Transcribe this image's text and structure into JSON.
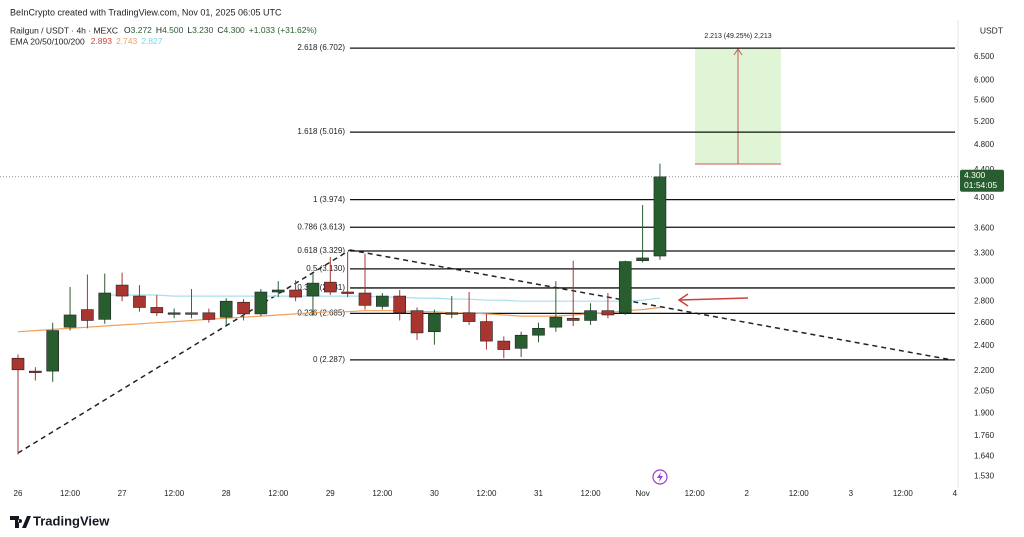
{
  "attribution": "BeInCrypto created with TradingView.com, Nov 01, 2025 06:05 UTC",
  "branding": "TradingView",
  "header": {
    "symbol": "Railgun / USDT · 4h · MEXC",
    "ohlc_labels": [
      "O",
      "H",
      "L",
      "C"
    ],
    "ohlc_values": [
      "3.272",
      "4.500",
      "3.230",
      "4.300"
    ],
    "change": "+1.033 (+31.62%)",
    "ema_label": "EMA 20/50/100/200",
    "ema_values": [
      "2.893",
      "2.743",
      "2.827"
    ],
    "ema_colors": [
      "#d0453f",
      "#f2a05a",
      "#7fd3e6"
    ]
  },
  "chart_data": {
    "type": "candlestick",
    "log": true,
    "currency": "USDT",
    "categories": [
      "26",
      null,
      null,
      "12:00",
      null,
      null,
      "27",
      null,
      null,
      "12:00",
      null,
      null,
      "28",
      null,
      null,
      "12:00",
      null,
      null,
      "29",
      null,
      null,
      "12:00",
      null,
      null,
      "30",
      null,
      null,
      "12:00",
      null,
      null,
      "31",
      null,
      null,
      "12:00",
      null,
      null,
      "Nov",
      null,
      null,
      "12:00",
      null,
      null,
      "2",
      null,
      null,
      "12:00",
      null,
      null,
      "3",
      null,
      null,
      "12:00",
      null,
      null,
      "4"
    ],
    "open": [
      2.3,
      2.2,
      2.2,
      2.56,
      2.72,
      2.63,
      2.96,
      2.85,
      2.74,
      2.68,
      2.69,
      2.69,
      2.65,
      2.79,
      2.68,
      2.89,
      2.91,
      2.85,
      2.99,
      2.89,
      2.88,
      2.75,
      2.85,
      2.71,
      2.52,
      2.68,
      2.69,
      2.61,
      2.44,
      2.38,
      2.49,
      2.56,
      2.64,
      2.62,
      2.71,
      2.69,
      3.22,
      3.272,
      null,
      null,
      null,
      null,
      null,
      null,
      null,
      null,
      null,
      null,
      null,
      null,
      null,
      null,
      null,
      null,
      null
    ],
    "high": [
      2.33,
      2.23,
      2.6,
      2.94,
      3.07,
      3.08,
      3.09,
      2.96,
      2.86,
      2.73,
      2.92,
      2.73,
      2.83,
      2.82,
      2.92,
      3.0,
      3.01,
      3.08,
      3.26,
      3.32,
      3.3,
      2.88,
      2.91,
      2.74,
      2.72,
      2.85,
      2.89,
      2.68,
      2.48,
      2.52,
      2.6,
      3.0,
      3.22,
      2.78,
      2.88,
      3.22,
      3.9,
      4.5,
      null,
      null,
      null,
      null,
      null,
      null,
      null,
      null,
      null,
      null,
      null,
      null,
      null,
      null,
      null,
      null,
      null
    ],
    "low": [
      1.65,
      2.13,
      2.12,
      2.53,
      2.55,
      2.59,
      2.8,
      2.7,
      2.66,
      2.64,
      2.64,
      2.6,
      2.58,
      2.62,
      2.66,
      2.84,
      2.8,
      2.66,
      2.86,
      2.84,
      2.72,
      2.72,
      2.62,
      2.45,
      2.41,
      2.64,
      2.58,
      2.37,
      2.3,
      2.31,
      2.43,
      2.52,
      2.57,
      2.58,
      2.64,
      2.67,
      3.2,
      3.23,
      null,
      null,
      null,
      null,
      null,
      null,
      null,
      null,
      null,
      null,
      null,
      null,
      null,
      null,
      null,
      null,
      null
    ],
    "close": [
      2.21,
      2.19,
      2.53,
      2.67,
      2.62,
      2.88,
      2.85,
      2.74,
      2.69,
      2.69,
      2.68,
      2.63,
      2.8,
      2.68,
      2.89,
      2.91,
      2.84,
      2.98,
      2.89,
      2.88,
      2.76,
      2.85,
      2.69,
      2.51,
      2.68,
      2.69,
      2.61,
      2.44,
      2.37,
      2.49,
      2.55,
      2.65,
      2.62,
      2.71,
      2.67,
      3.21,
      3.25,
      4.3,
      null,
      null,
      null,
      null,
      null,
      null,
      null,
      null,
      null,
      null,
      null,
      null,
      null,
      null,
      null,
      null,
      null
    ],
    "up_color": "#285e2f",
    "down_color": "#a83530",
    "ema_lines": [
      {
        "color": "#f2a05a",
        "values": [
          2.52,
          2.53,
          2.54,
          2.55,
          2.56,
          2.57,
          2.58,
          2.59,
          2.6,
          2.61,
          2.62,
          2.63,
          2.64,
          2.65,
          2.66,
          2.67,
          2.68,
          2.69,
          2.7,
          2.7,
          2.71,
          2.71,
          2.71,
          2.7,
          2.7,
          2.69,
          2.69,
          2.68,
          2.67,
          2.66,
          2.66,
          2.66,
          2.67,
          2.68,
          2.69,
          2.71,
          2.72,
          2.74,
          null,
          null,
          null,
          null,
          null,
          null,
          null,
          null,
          null,
          null,
          null,
          null,
          null,
          null,
          null,
          null,
          null
        ]
      },
      {
        "color": "#a8e0ee",
        "values": [
          null,
          null,
          null,
          null,
          null,
          2.86,
          2.86,
          2.86,
          2.86,
          2.85,
          2.85,
          2.85,
          2.85,
          2.85,
          2.85,
          2.85,
          2.85,
          2.85,
          2.85,
          2.85,
          2.85,
          2.84,
          2.84,
          2.83,
          2.83,
          2.82,
          2.82,
          2.81,
          2.81,
          2.8,
          2.8,
          2.8,
          2.8,
          2.8,
          2.8,
          2.8,
          2.81,
          2.83,
          null,
          null,
          null,
          null,
          null,
          null,
          null,
          null,
          null,
          null,
          null,
          null,
          null,
          null,
          null,
          null,
          null
        ]
      }
    ],
    "fib_levels": [
      {
        "label": "2.618 (6.702)",
        "value": 6.702
      },
      {
        "label": "1.618 (5.016)",
        "value": 5.016
      },
      {
        "label": "1 (3.974)",
        "value": 3.974
      },
      {
        "label": "0.786 (3.613)",
        "value": 3.613
      },
      {
        "label": "0.618 (3.329)",
        "value": 3.329
      },
      {
        "label": "0.5 (3.130)",
        "value": 3.13
      },
      {
        "label": "0.382 (2.931)",
        "value": 2.931
      },
      {
        "label": "0.236 (2.685)",
        "value": 2.685
      },
      {
        "label": "0 (2.287)",
        "value": 2.287
      }
    ],
    "measure_label": "2.213 (49.25%) 2,213",
    "last_price": {
      "value": 4.3,
      "label": "4.300"
    },
    "countdown": "01:54:05",
    "ylim": [
      1.46,
      7.5
    ],
    "yticks": [
      {
        "value": 6.5,
        "label": "6.500"
      },
      {
        "value": 6.0,
        "label": "6.000"
      },
      {
        "value": 5.6,
        "label": "5.600"
      },
      {
        "value": 5.2,
        "label": "5.200"
      },
      {
        "value": 4.8,
        "label": "4.800"
      },
      {
        "value": 4.4,
        "label": "4.400"
      },
      {
        "value": 4.0,
        "label": "4.000"
      },
      {
        "value": 3.6,
        "label": "3.600"
      },
      {
        "value": 3.3,
        "label": "3.300"
      },
      {
        "value": 3.0,
        "label": "3.000"
      },
      {
        "value": 2.8,
        "label": "2.800"
      },
      {
        "value": 2.6,
        "label": "2.600"
      },
      {
        "value": 2.4,
        "label": "2.400"
      },
      {
        "value": 2.2,
        "label": "2.200"
      },
      {
        "value": 2.05,
        "label": "2.050"
      },
      {
        "value": 1.9,
        "label": "1.900"
      },
      {
        "value": 1.76,
        "label": "1.760"
      },
      {
        "value": 1.64,
        "label": "1.640"
      },
      {
        "value": 1.53,
        "label": "1.530"
      }
    ],
    "grid": false
  }
}
